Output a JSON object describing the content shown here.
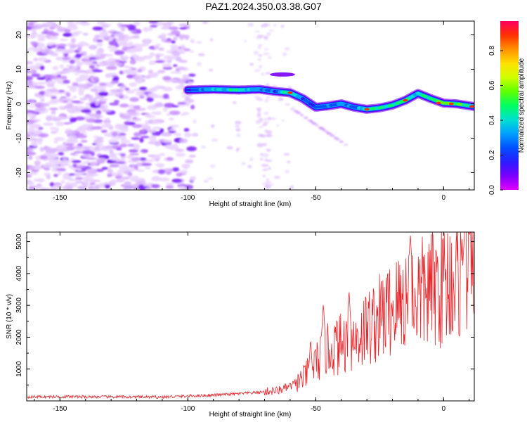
{
  "figure": {
    "title": "PAZ1.2024.350.03.38.G07"
  },
  "colors": {
    "spectrum": [
      "#e300ff",
      "#7a00ff",
      "#2a1cff",
      "#0050ff",
      "#00a0ff",
      "#00e0d0",
      "#00ff60",
      "#5fff00",
      "#d0ff00",
      "#ffe000",
      "#ff9000",
      "#ff3000",
      "#ff0060"
    ],
    "snr_line": "#e8252a",
    "axes": "#000000"
  },
  "chart_data": [
    {
      "type": "heatmap",
      "name": "spectrogram",
      "xlabel": "Height of straight line (km)",
      "ylabel": "Frequency (Hz)",
      "xlim": [
        -163,
        12
      ],
      "ylim": [
        -25,
        24
      ],
      "xticks": [
        -150,
        -100,
        -50,
        0
      ],
      "yticks": [
        -20,
        -10,
        0,
        10,
        20
      ],
      "colorbar": {
        "label": "Normalized spectral amplitude",
        "range": [
          0,
          0.97
        ],
        "ticks": [
          0.0,
          0.2,
          0.4,
          0.6,
          0.8
        ]
      },
      "ridge": {
        "description_points": [
          {
            "x": -100,
            "y": 4.0,
            "amp": 0.2
          },
          {
            "x": -90,
            "y": 4.2,
            "amp": 0.35
          },
          {
            "x": -80,
            "y": 4.0,
            "amp": 0.45
          },
          {
            "x": -72,
            "y": 4.2,
            "amp": 0.3
          },
          {
            "x": -66,
            "y": 3.6,
            "amp": 0.25
          },
          {
            "x": -60,
            "y": 3.2,
            "amp": 0.55
          },
          {
            "x": -55,
            "y": 1.5,
            "amp": 0.2
          },
          {
            "x": -50,
            "y": -1.0,
            "amp": 0.2
          },
          {
            "x": -45,
            "y": -0.6,
            "amp": 0.25
          },
          {
            "x": -40,
            "y": 0.0,
            "amp": 0.3
          },
          {
            "x": -35,
            "y": -1.0,
            "amp": 0.3
          },
          {
            "x": -30,
            "y": -1.6,
            "amp": 0.45
          },
          {
            "x": -25,
            "y": -1.2,
            "amp": 0.5
          },
          {
            "x": -20,
            "y": -0.4,
            "amp": 0.45
          },
          {
            "x": -15,
            "y": 1.0,
            "amp": 0.55
          },
          {
            "x": -10,
            "y": 3.0,
            "amp": 0.4
          },
          {
            "x": -5,
            "y": 1.5,
            "amp": 0.45
          },
          {
            "x": 0,
            "y": 0.2,
            "amp": 0.6
          },
          {
            "x": 5,
            "y": 0.0,
            "amp": 0.55
          },
          {
            "x": 12,
            "y": -0.8,
            "amp": 0.4
          }
        ]
      }
    },
    {
      "type": "line",
      "name": "snr",
      "xlabel": "Height of straight line (km)",
      "ylabel": "SNR (10 * v/v)",
      "xlim": [
        -163,
        12
      ],
      "ylim": [
        0,
        5300
      ],
      "xticks": [
        -150,
        -100,
        -50,
        0
      ],
      "yticks": [
        1000,
        2000,
        3000,
        4000,
        5000
      ],
      "trend": {
        "x": [
          -163,
          -140,
          -110,
          -90,
          -75,
          -65,
          -60,
          -55,
          -50,
          -45,
          -40,
          -35,
          -30,
          -25,
          -20,
          -15,
          -10,
          -5,
          0,
          5,
          12
        ],
        "y": [
          130,
          130,
          120,
          180,
          250,
          320,
          450,
          700,
          1200,
          1600,
          1800,
          1900,
          2300,
          2600,
          2900,
          3200,
          3300,
          3500,
          3700,
          3900,
          4400
        ]
      },
      "peaks": [
        {
          "x": -52,
          "y": 2000
        },
        {
          "x": -47,
          "y": 3100
        },
        {
          "x": -37,
          "y": 3500
        },
        {
          "x": -13,
          "y": 5250
        },
        {
          "x": 8,
          "y": 5000
        }
      ]
    }
  ]
}
